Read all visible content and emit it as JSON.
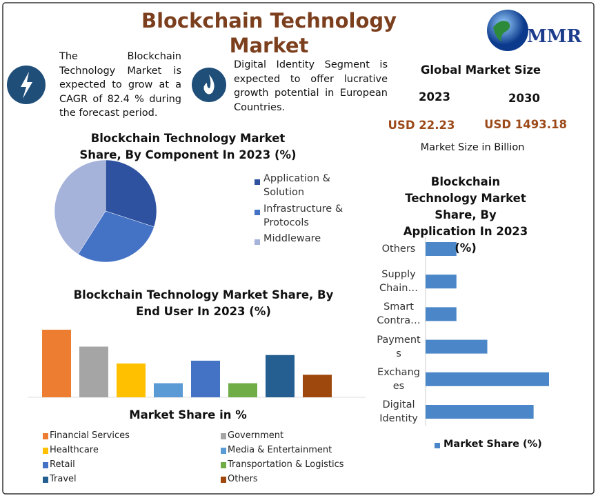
{
  "header": {
    "title": "Blockchain Technology Market",
    "logo": "MMR"
  },
  "highlights": [
    {
      "text": "The Blockchain Technology Market is expected to grow at a CAGR of 82.4 % during the forecast period."
    },
    {
      "text": "Digital Identity Segment is expected to offer lucrative growth potential in European Countries."
    }
  ],
  "market_size": {
    "title": "Global Market Size",
    "years": [
      "2023",
      "2030"
    ],
    "values": [
      "USD 22.23",
      "USD 1493.18"
    ],
    "note": "Market Size in Billion"
  },
  "chart_data": [
    {
      "type": "pie",
      "title": "Blockchain Technology Market Share, By Component In 2023 (%)",
      "categories": [
        "Application & Solution",
        "Infrastructure & Protocols",
        "Middleware"
      ],
      "values": [
        30,
        29,
        41
      ],
      "colors": [
        "#2f52a0",
        "#4472c4",
        "#a5b2da"
      ]
    },
    {
      "type": "bar",
      "title": "Blockchain Technology Market Share, By End User In 2023 (%)",
      "xlabel": "Market Share in %",
      "categories": [
        "Financial Services",
        "Government",
        "Healthcare",
        "Media & Entertainment",
        "Retail",
        "Transportation & Logistics",
        "Travel",
        "Others"
      ],
      "values": [
        24,
        18,
        12,
        5,
        13,
        5,
        15,
        8
      ],
      "colors": [
        "#ed7d31",
        "#a5a5a5",
        "#ffc000",
        "#5b9bd5",
        "#4472c4",
        "#70ad47",
        "#255e91",
        "#9e480e"
      ]
    },
    {
      "type": "hbar",
      "title": "Blockchain Technology Market Share, By Application In 2023 (%)",
      "categories": [
        "Others",
        "Supply Chain…",
        "Smart Contra…",
        "Payments",
        "Exchanges",
        "Digital Identity"
      ],
      "series": [
        {
          "name": "Market Share (%)",
          "color": "#4a86c8",
          "values": [
            8,
            8,
            8,
            16,
            32,
            28
          ]
        }
      ]
    }
  ]
}
